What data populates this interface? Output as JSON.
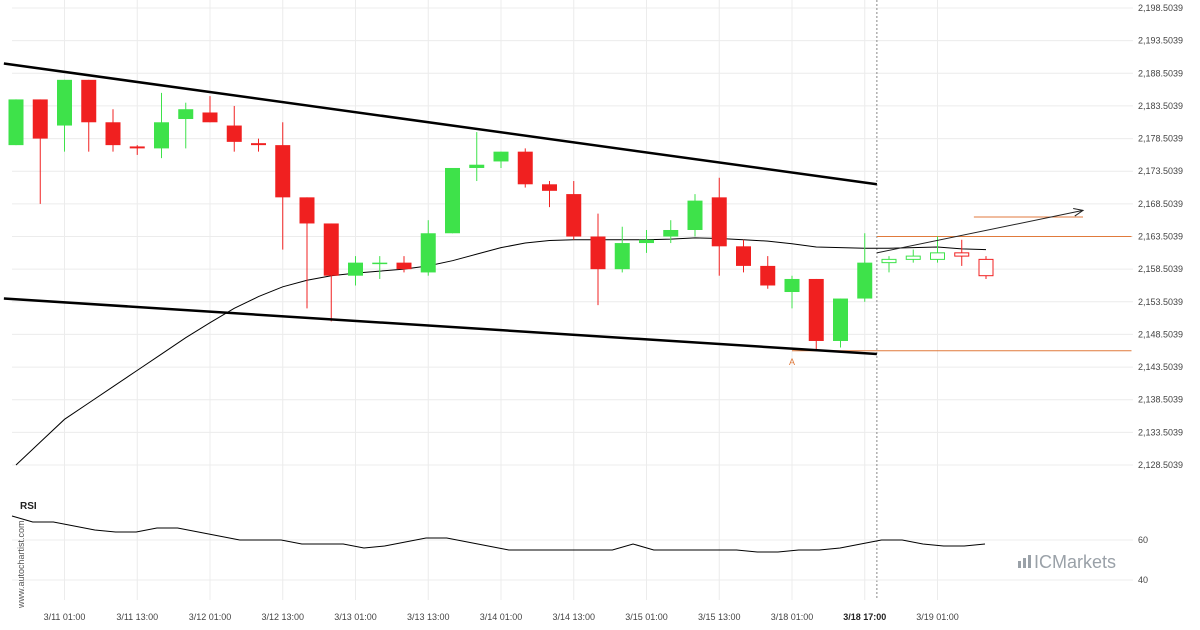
{
  "chart_data": {
    "type": "candlestick",
    "y_ticks": [
      "2,198.5039",
      "2,193.5039",
      "2,188.5039",
      "2,183.5039",
      "2,178.5039",
      "2,173.5039",
      "2,168.5039",
      "2,163.5039",
      "2,158.5039",
      "2,153.5039",
      "2,148.5039",
      "2,143.5039",
      "2,138.5039",
      "2,133.5039",
      "2,128.5039"
    ],
    "y_tick_values": [
      2198.5039,
      2193.5039,
      2188.5039,
      2183.5039,
      2178.5039,
      2173.5039,
      2168.5039,
      2163.5039,
      2158.5039,
      2153.5039,
      2148.5039,
      2143.5039,
      2138.5039,
      2133.5039,
      2128.5039
    ],
    "x_ticks": [
      "3/11 01:00",
      "3/11 13:00",
      "3/12 01:00",
      "3/12 13:00",
      "3/13 01:00",
      "3/13 13:00",
      "3/14 01:00",
      "3/14 13:00",
      "3/15 01:00",
      "3/15 13:00",
      "3/18 01:00",
      "3/18 17:00",
      "3/19 01:00"
    ],
    "x_tick_bars": [
      2,
      5,
      8,
      11,
      14,
      17,
      20,
      23,
      26,
      29,
      32,
      35,
      38
    ],
    "bold_x_tick_index": 11,
    "candles": [
      {
        "o": 2177.5,
        "h": 2184.5,
        "l": 2177.5,
        "c": 2184.5,
        "projected": false
      },
      {
        "o": 2184.5,
        "h": 2184.5,
        "l": 2168.5,
        "c": 2178.5,
        "projected": false
      },
      {
        "o": 2180.5,
        "h": 2187.5,
        "l": 2176.5,
        "c": 2187.5,
        "projected": false
      },
      {
        "o": 2187.5,
        "h": 2187.5,
        "l": 2176.5,
        "c": 2181.0,
        "projected": false
      },
      {
        "o": 2181.0,
        "h": 2183.0,
        "l": 2176.5,
        "c": 2177.5,
        "projected": false
      },
      {
        "o": 2177.3,
        "h": 2177.5,
        "l": 2176.0,
        "c": 2177.0,
        "projected": false
      },
      {
        "o": 2177.0,
        "h": 2185.5,
        "l": 2175.5,
        "c": 2181.0,
        "projected": false
      },
      {
        "o": 2181.5,
        "h": 2184.0,
        "l": 2177.0,
        "c": 2183.0,
        "projected": false
      },
      {
        "o": 2182.5,
        "h": 2185.0,
        "l": 2181.0,
        "c": 2181.0,
        "projected": false
      },
      {
        "o": 2180.5,
        "h": 2183.5,
        "l": 2176.5,
        "c": 2178.0,
        "projected": false
      },
      {
        "o": 2177.8,
        "h": 2178.5,
        "l": 2176.5,
        "c": 2177.5,
        "projected": false
      },
      {
        "o": 2177.5,
        "h": 2181.0,
        "l": 2161.5,
        "c": 2169.5,
        "projected": false
      },
      {
        "o": 2169.5,
        "h": 2169.5,
        "l": 2152.5,
        "c": 2165.5,
        "projected": false
      },
      {
        "o": 2165.5,
        "h": 2165.5,
        "l": 2150.5,
        "c": 2157.5,
        "projected": false
      },
      {
        "o": 2157.5,
        "h": 2160.5,
        "l": 2156.0,
        "c": 2159.5,
        "projected": false
      },
      {
        "o": 2159.5,
        "h": 2160.5,
        "l": 2157.0,
        "c": 2159.5,
        "projected": false
      },
      {
        "o": 2159.5,
        "h": 2160.5,
        "l": 2158.0,
        "c": 2158.5,
        "projected": false
      },
      {
        "o": 2158.0,
        "h": 2166.0,
        "l": 2157.5,
        "c": 2164.0,
        "projected": false
      },
      {
        "o": 2164.0,
        "h": 2174.0,
        "l": 2164.0,
        "c": 2174.0,
        "projected": false
      },
      {
        "o": 2174.0,
        "h": 2179.5,
        "l": 2172.0,
        "c": 2174.5,
        "projected": false
      },
      {
        "o": 2175.0,
        "h": 2176.5,
        "l": 2174.0,
        "c": 2176.5,
        "projected": false
      },
      {
        "o": 2176.5,
        "h": 2177.0,
        "l": 2171.0,
        "c": 2171.5,
        "projected": false
      },
      {
        "o": 2171.5,
        "h": 2172.0,
        "l": 2168.0,
        "c": 2170.5,
        "projected": false
      },
      {
        "o": 2170.0,
        "h": 2172.0,
        "l": 2163.0,
        "c": 2163.5,
        "projected": false
      },
      {
        "o": 2163.5,
        "h": 2167.0,
        "l": 2153.0,
        "c": 2158.5,
        "projected": false
      },
      {
        "o": 2158.5,
        "h": 2165.0,
        "l": 2158.0,
        "c": 2162.5,
        "projected": false
      },
      {
        "o": 2162.5,
        "h": 2164.5,
        "l": 2161.0,
        "c": 2163.0,
        "projected": false
      },
      {
        "o": 2163.5,
        "h": 2166.0,
        "l": 2162.5,
        "c": 2164.5,
        "projected": false
      },
      {
        "o": 2164.5,
        "h": 2170.0,
        "l": 2163.5,
        "c": 2169.0,
        "projected": false
      },
      {
        "o": 2169.5,
        "h": 2172.5,
        "l": 2157.5,
        "c": 2162.0,
        "projected": false
      },
      {
        "o": 2162.0,
        "h": 2163.0,
        "l": 2158.0,
        "c": 2159.0,
        "projected": false
      },
      {
        "o": 2159.0,
        "h": 2160.5,
        "l": 2155.5,
        "c": 2156.0,
        "projected": false
      },
      {
        "o": 2155.0,
        "h": 2157.5,
        "l": 2152.5,
        "c": 2157.0,
        "projected": false
      },
      {
        "o": 2157.0,
        "h": 2157.0,
        "l": 2146.0,
        "c": 2147.5,
        "projected": false
      },
      {
        "o": 2147.5,
        "h": 2154.0,
        "l": 2146.5,
        "c": 2154.0,
        "projected": false
      },
      {
        "o": 2154.0,
        "h": 2164.0,
        "l": 2153.5,
        "c": 2159.5,
        "projected": false
      },
      {
        "o": 2159.5,
        "h": 2160.5,
        "l": 2158.0,
        "c": 2160.0,
        "projected": true
      },
      {
        "o": 2160.0,
        "h": 2161.5,
        "l": 2159.5,
        "c": 2160.5,
        "projected": true
      },
      {
        "o": 2160.0,
        "h": 2163.5,
        "l": 2159.5,
        "c": 2161.0,
        "projected": true
      },
      {
        "o": 2161.0,
        "h": 2163.0,
        "l": 2159.0,
        "c": 2160.5,
        "projected": true
      },
      {
        "o": 2160.0,
        "h": 2160.5,
        "l": 2157.0,
        "c": 2157.5,
        "projected": true
      }
    ],
    "moving_average": [
      2128.5,
      2132.0,
      2135.5,
      2138.0,
      2140.5,
      2143.0,
      2145.5,
      2148.0,
      2150.3,
      2152.5,
      2154.3,
      2155.8,
      2156.8,
      2157.5,
      2157.9,
      2158.2,
      2158.5,
      2159.0,
      2159.8,
      2160.8,
      2161.8,
      2162.5,
      2162.9,
      2163.0,
      2163.0,
      2163.0,
      2163.0,
      2163.1,
      2163.3,
      2163.2,
      2163.0,
      2162.8,
      2162.4,
      2161.9,
      2161.8,
      2161.7,
      2161.7,
      2161.8,
      2161.9,
      2161.6,
      2161.5
    ],
    "trendlines": [
      {
        "name": "resistance",
        "from": {
          "bar": -0.5,
          "price": 2190.0
        },
        "to": {
          "bar": 35.5,
          "price": 2171.5
        }
      },
      {
        "name": "support",
        "from": {
          "bar": -0.5,
          "price": 2154.0
        },
        "to": {
          "bar": 35.5,
          "price": 2145.5
        }
      }
    ],
    "projection_arrow": {
      "from": {
        "bar": 35.5,
        "price": 2161.0
      },
      "to": {
        "bar": 44.0,
        "price": 2167.5
      }
    },
    "horizontal_levels": [
      {
        "price": 2166.5,
        "from_bar": 39.5,
        "to_bar": 44.0
      },
      {
        "price": 2163.5,
        "from_bar": 35.5,
        "to_bar": 46.0
      },
      {
        "price": 2146.0,
        "from_bar": 32.0,
        "to_bar": 46.0
      }
    ],
    "point_label": {
      "text": "A",
      "bar": 32,
      "price": 2146.0
    },
    "divider_bar": 35.5,
    "y_range": [
      2128.5039,
      2198.5039
    ],
    "rsi": {
      "label": "RSI",
      "ticks": [
        "60",
        "40"
      ],
      "tick_values": [
        60,
        40
      ],
      "range": [
        30,
        80
      ],
      "values": [
        72,
        69,
        69,
        67,
        65,
        64,
        64,
        66,
        66,
        64,
        62,
        60,
        60,
        60,
        58,
        58,
        58,
        56,
        57,
        59,
        61,
        61,
        59,
        57,
        55,
        55,
        55,
        55,
        55,
        55,
        58,
        55,
        55,
        55,
        55,
        55,
        54,
        54,
        55,
        55,
        56,
        58,
        60,
        60,
        58,
        57,
        57,
        58
      ]
    }
  },
  "watermark": "www.autochartist.com",
  "brand": {
    "text": "ICMarkets",
    "color": "#9aa1a8"
  },
  "colors": {
    "bull": "#3ee24a",
    "bear": "#f02020",
    "line": "#000000",
    "level": "#e07a3c",
    "divider": "#888888"
  }
}
